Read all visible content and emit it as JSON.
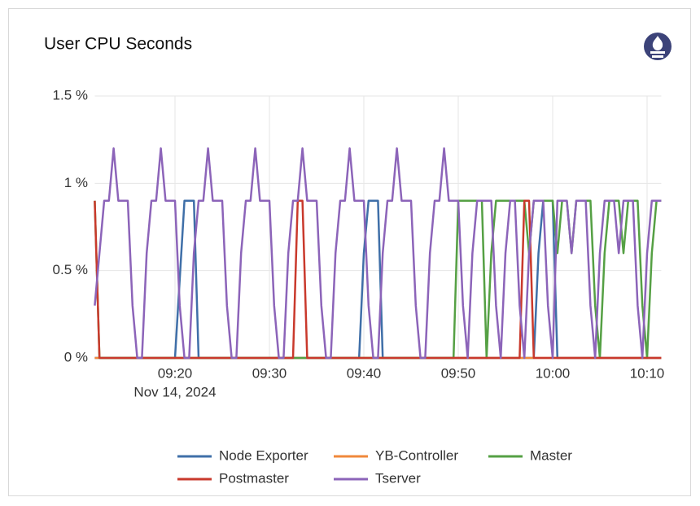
{
  "chart_data": {
    "type": "line",
    "title": "User CPU Seconds",
    "x": [
      551.5,
      552,
      552.5,
      553,
      553.5,
      554,
      554.5,
      555,
      555.5,
      556,
      556.5,
      557,
      557.5,
      558,
      558.5,
      559,
      559.5,
      560,
      560.5,
      561,
      561.5,
      562,
      562.5,
      563,
      563.5,
      564,
      564.5,
      565,
      565.5,
      566,
      566.5,
      567,
      567.5,
      568,
      568.5,
      569,
      569.5,
      570,
      570.5,
      571,
      571.5,
      572,
      572.5,
      573,
      573.5,
      574,
      574.5,
      575,
      575.5,
      576,
      576.5,
      577,
      577.5,
      578,
      578.5,
      579,
      579.5,
      580,
      580.5,
      581,
      581.5,
      582,
      582.5,
      583,
      583.5,
      584,
      584.5,
      585,
      585.5,
      586,
      586.5,
      587,
      587.5,
      588,
      588.5,
      589,
      589.5,
      590,
      590.5,
      591,
      591.5,
      592,
      592.5,
      593,
      593.5,
      594,
      594.5,
      595,
      595.5,
      596,
      596.5,
      597,
      597.5,
      598,
      598.5,
      599,
      599.5,
      600,
      600.5,
      601,
      601.5,
      602,
      602.5,
      603,
      603.5,
      604,
      604.5,
      605,
      605.5,
      606,
      606.5,
      607,
      607.5,
      608,
      608.5,
      609,
      609.5,
      610,
      610.5,
      611,
      611.5
    ],
    "xlim": [
      551.5,
      611.5
    ],
    "xticks": [
      {
        "value": 560,
        "label": "09:20"
      },
      {
        "value": 570,
        "label": "09:30"
      },
      {
        "value": 580,
        "label": "09:40"
      },
      {
        "value": 590,
        "label": "09:50"
      },
      {
        "value": 600,
        "label": "10:00"
      },
      {
        "value": 610,
        "label": "10:10"
      }
    ],
    "x_date_label": "Nov 14, 2024",
    "ylim": [
      0,
      1.5
    ],
    "yticks": [
      {
        "value": 0,
        "label": "0 %"
      },
      {
        "value": 0.5,
        "label": "0.5 %"
      },
      {
        "value": 1,
        "label": "1 %"
      },
      {
        "value": 1.5,
        "label": "1.5 %"
      }
    ],
    "grid": true,
    "legend": "bottom",
    "series": [
      {
        "name": "Node Exporter",
        "color": "#3f6fa8",
        "values": [
          0,
          0,
          0,
          0,
          0,
          0,
          0,
          0,
          0,
          0,
          0,
          0,
          0,
          0,
          0,
          0,
          0,
          0,
          0.45,
          0.9,
          0.9,
          0.9,
          0,
          0,
          0,
          0,
          0,
          0,
          0,
          0,
          0,
          0,
          0,
          0,
          0,
          0,
          0,
          0,
          0,
          0,
          0,
          0,
          0,
          0,
          0,
          0,
          0,
          0,
          0,
          0,
          0,
          0,
          0,
          0,
          0,
          0,
          0,
          0.6,
          0.9,
          0.9,
          0.9,
          0,
          0,
          0,
          0,
          0,
          0,
          0,
          0,
          0,
          0,
          0,
          0,
          0,
          0,
          0,
          0,
          0,
          0,
          0,
          0,
          0,
          0,
          0,
          0,
          0,
          0,
          0,
          0,
          0,
          0,
          0,
          0,
          0,
          0.6,
          0.9,
          0.9,
          0.9,
          0,
          0,
          0,
          0,
          0,
          0,
          0,
          0,
          0,
          0,
          0,
          0,
          0,
          0,
          0,
          0,
          0,
          0,
          0,
          0,
          0,
          0,
          0
        ]
      },
      {
        "name": "YB-Controller",
        "color": "#f0883b",
        "values": [
          0,
          0,
          0,
          0,
          0,
          0,
          0,
          0,
          0,
          0,
          0,
          0,
          0,
          0,
          0,
          0,
          0,
          0,
          0,
          0,
          0,
          0,
          0,
          0,
          0,
          0,
          0,
          0,
          0,
          0,
          0,
          0,
          0,
          0,
          0,
          0,
          0,
          0,
          0,
          0,
          0,
          0,
          0,
          0,
          0,
          0,
          0,
          0,
          0,
          0,
          0,
          0,
          0,
          0,
          0,
          0,
          0,
          0,
          0,
          0,
          0,
          0,
          0,
          0,
          0,
          0,
          0,
          0,
          0,
          0,
          0,
          0,
          0,
          0,
          0,
          0,
          0,
          0,
          0,
          0,
          0,
          0,
          0,
          0,
          0,
          0,
          0,
          0,
          0,
          0,
          0,
          0,
          0,
          0,
          0,
          0,
          0,
          0,
          0,
          0,
          0,
          0,
          0,
          0,
          0,
          0,
          0,
          0,
          0,
          0,
          0,
          0,
          0,
          0,
          0,
          0,
          0,
          0,
          0,
          0,
          0
        ]
      },
      {
        "name": "Master",
        "color": "#55a044",
        "values": [
          0.9,
          0,
          0,
          0,
          0,
          0,
          0,
          0,
          0,
          0,
          0,
          0,
          0,
          0,
          0,
          0,
          0,
          0,
          0,
          0,
          0,
          0,
          0,
          0,
          0,
          0,
          0,
          0,
          0,
          0,
          0,
          0,
          0,
          0,
          0,
          0,
          0,
          0,
          0,
          0,
          0,
          0,
          0,
          0,
          0,
          0,
          0,
          0,
          0,
          0,
          0,
          0,
          0,
          0,
          0,
          0,
          0,
          0,
          0,
          0,
          0,
          0,
          0,
          0,
          0,
          0,
          0,
          0,
          0,
          0,
          0,
          0,
          0,
          0,
          0,
          0,
          0,
          0.9,
          0.9,
          0.9,
          0.9,
          0.9,
          0.9,
          0,
          0.6,
          0.9,
          0.9,
          0.9,
          0.9,
          0.9,
          0.9,
          0.9,
          0.6,
          0.9,
          0.9,
          0.9,
          0.9,
          0.9,
          0.6,
          0.9,
          0.9,
          0.6,
          0.9,
          0.9,
          0.9,
          0.9,
          0.3,
          0,
          0.6,
          0.9,
          0.9,
          0.9,
          0.6,
          0.9,
          0.9,
          0.9,
          0.3,
          0,
          0.6,
          0.9,
          0.9
        ]
      },
      {
        "name": "Postmaster",
        "color": "#c9392c",
        "values": [
          0.9,
          0,
          0,
          0,
          0,
          0,
          0,
          0,
          0,
          0,
          0,
          0,
          0,
          0,
          0,
          0,
          0,
          0,
          0,
          0,
          0,
          0,
          0,
          0,
          0,
          0,
          0,
          0,
          0,
          0,
          0,
          0,
          0,
          0,
          0,
          0,
          0,
          0,
          0,
          0,
          0,
          0,
          0,
          0.9,
          0.9,
          0,
          0,
          0,
          0,
          0,
          0,
          0,
          0,
          0,
          0,
          0,
          0,
          0,
          0,
          0,
          0,
          0,
          0,
          0,
          0,
          0,
          0,
          0,
          0,
          0,
          0,
          0,
          0,
          0,
          0,
          0,
          0,
          0,
          0,
          0,
          0,
          0,
          0,
          0,
          0,
          0,
          0,
          0,
          0,
          0,
          0,
          0.9,
          0.9,
          0,
          0,
          0,
          0,
          0,
          0,
          0,
          0,
          0,
          0,
          0,
          0,
          0,
          0,
          0,
          0,
          0,
          0,
          0,
          0,
          0,
          0,
          0,
          0,
          0,
          0,
          0,
          0
        ]
      },
      {
        "name": "Tserver",
        "color": "#8c64b9",
        "values": [
          0.3,
          0.6,
          0.9,
          0.9,
          1.2,
          0.9,
          0.9,
          0.9,
          0.3,
          0,
          0,
          0.6,
          0.9,
          0.9,
          1.2,
          0.9,
          0.9,
          0.9,
          0.3,
          0,
          0,
          0.6,
          0.9,
          0.9,
          1.2,
          0.9,
          0.9,
          0.9,
          0.3,
          0,
          0,
          0.6,
          0.9,
          0.9,
          1.2,
          0.9,
          0.9,
          0.9,
          0.3,
          0,
          0,
          0.6,
          0.9,
          0.9,
          1.2,
          0.9,
          0.9,
          0.9,
          0.3,
          0,
          0,
          0.6,
          0.9,
          0.9,
          1.2,
          0.9,
          0.9,
          0.9,
          0.3,
          0,
          0,
          0.6,
          0.9,
          0.9,
          1.2,
          0.9,
          0.9,
          0.9,
          0.3,
          0,
          0,
          0.6,
          0.9,
          0.9,
          1.2,
          0.9,
          0.9,
          0.9,
          0.3,
          0,
          0.6,
          0.9,
          0.9,
          0.9,
          0.9,
          0.3,
          0,
          0.6,
          0.9,
          0.9,
          0.3,
          0,
          0.6,
          0.9,
          0.9,
          0.9,
          0.3,
          0,
          0.9,
          0.9,
          0.9,
          0.6,
          0.9,
          0.9,
          0.9,
          0.3,
          0,
          0.6,
          0.9,
          0.9,
          0.9,
          0.6,
          0.9,
          0.9,
          0.9,
          0.3,
          0,
          0.6,
          0.9,
          0.9,
          0.9
        ]
      }
    ]
  }
}
